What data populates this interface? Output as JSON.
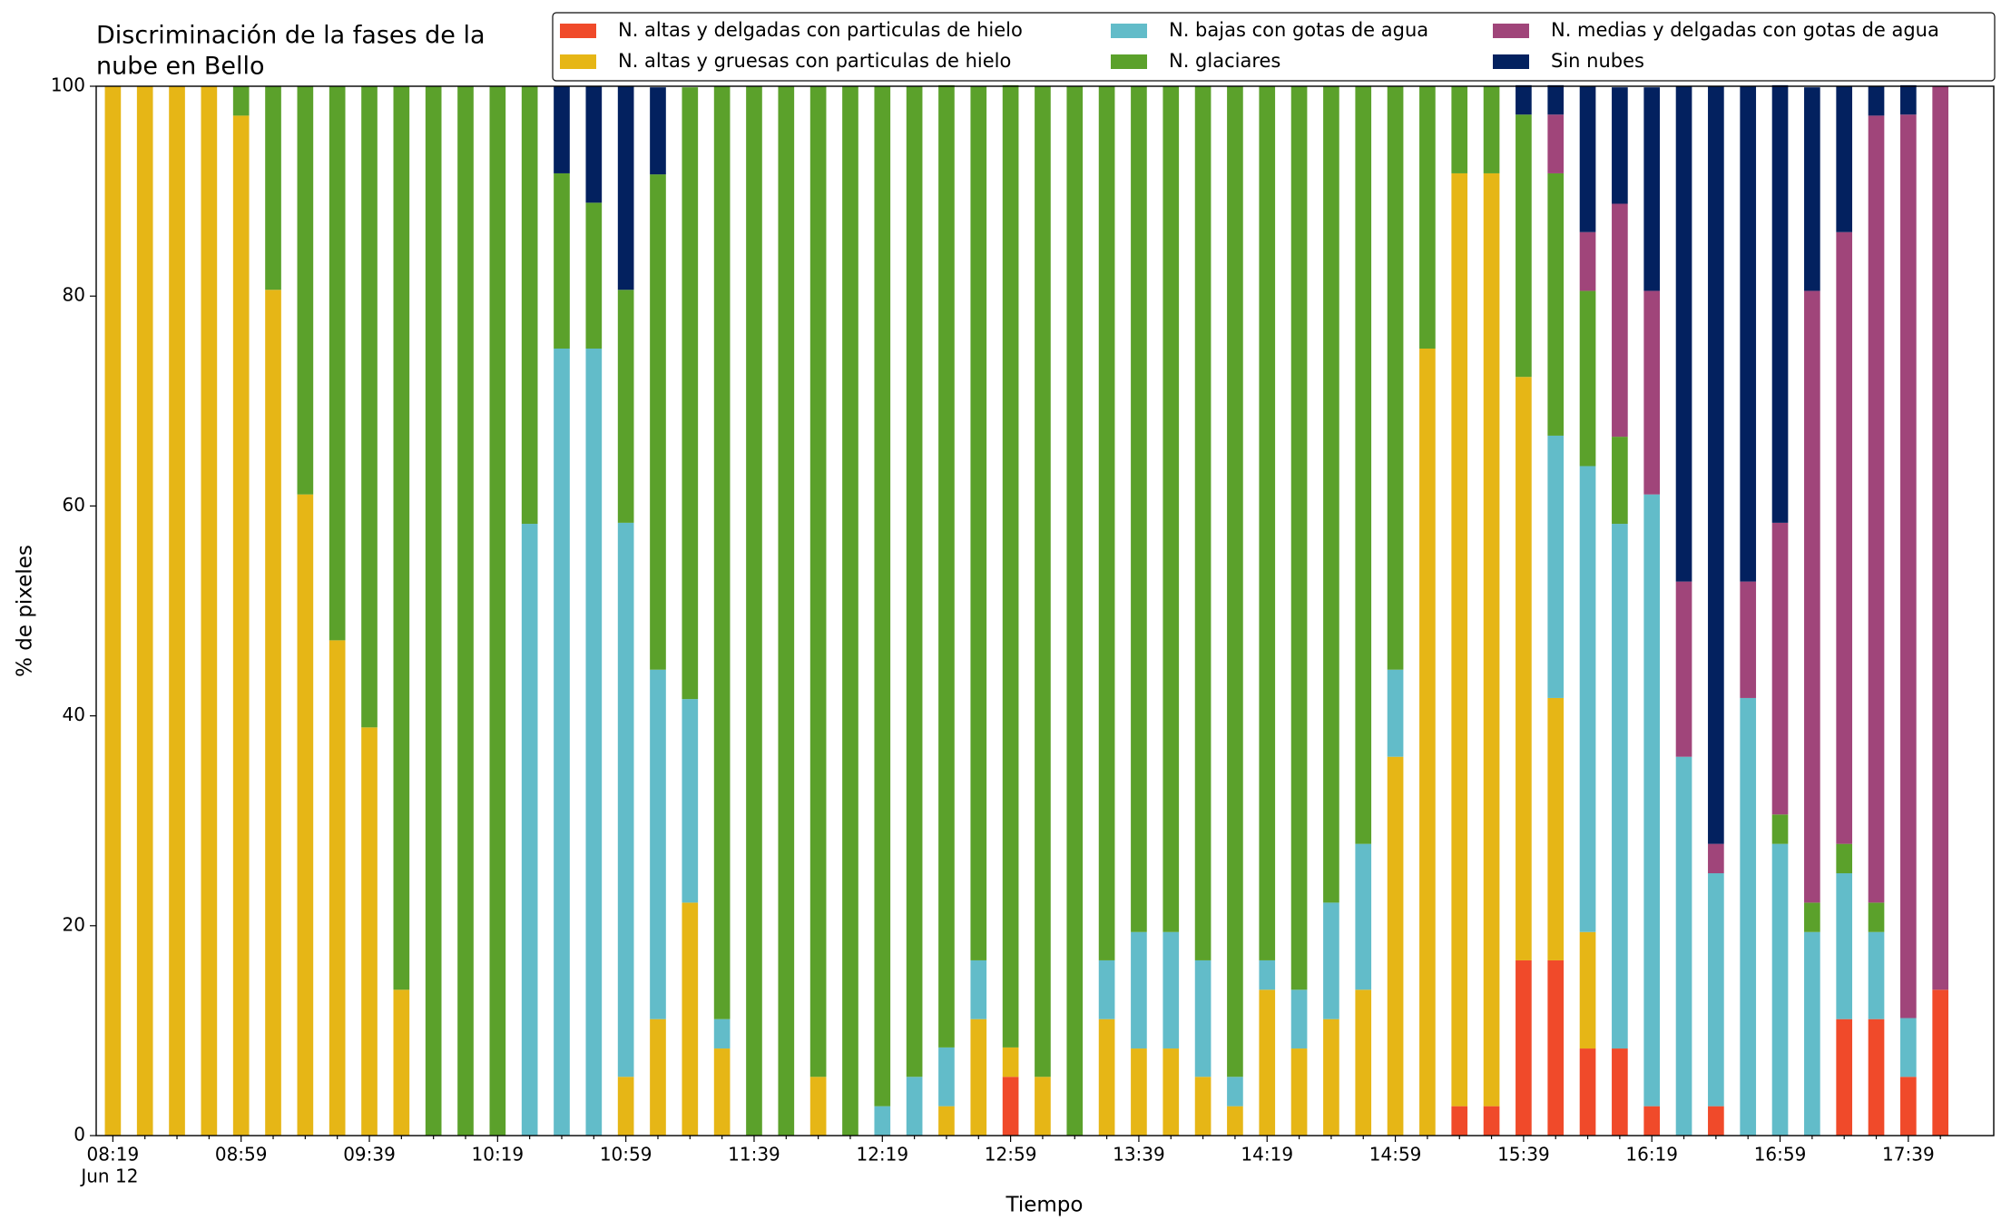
{
  "chart_data": {
    "type": "stacked_bar",
    "title": [
      "Discriminación de la fases de la",
      "nube en Bello"
    ],
    "x_label": "Tiempo",
    "y_label": "% de pixeles",
    "date_label": "Jun 12",
    "categories": [
      "08:19",
      null,
      null,
      null,
      "08:59",
      null,
      null,
      null,
      "09:39",
      null,
      null,
      null,
      "10:19",
      null,
      null,
      null,
      "10:59",
      null,
      null,
      null,
      "11:39",
      null,
      null,
      null,
      "12:19",
      null,
      null,
      null,
      "12:59",
      null,
      null,
      null,
      "13:39",
      null,
      null,
      null,
      "14:19",
      null,
      null,
      null,
      "14:59",
      null,
      null,
      null,
      "15:39",
      null,
      null,
      null,
      "16:19",
      null,
      null,
      null,
      "16:59",
      null,
      null,
      null,
      "17:39",
      null
    ],
    "ylim": [
      0,
      100
    ],
    "yticks": [
      0,
      20,
      40,
      60,
      80,
      100
    ],
    "series": [
      {
        "name": "N. altas y delgadas con particulas de hielo",
        "color": "#f04a2a",
        "values": [
          0,
          0,
          0,
          0,
          0,
          0,
          0,
          0,
          0,
          0,
          0,
          0,
          0,
          0,
          0,
          0,
          0,
          0,
          0,
          0,
          0,
          0,
          0,
          0,
          0,
          0,
          0,
          0,
          5.6,
          0,
          0,
          0,
          0,
          0,
          0,
          0,
          0,
          0,
          0,
          0,
          0,
          0,
          2.8,
          2.8,
          16.7,
          16.7,
          8.3,
          8.3,
          2.8,
          0,
          2.8,
          0,
          0,
          0,
          11.1,
          11.1,
          5.6,
          13.9
        ]
      },
      {
        "name": "N. altas y gruesas con particulas de hielo",
        "color": "#e6b616",
        "values": [
          100,
          100,
          100,
          100,
          97.2,
          80.6,
          61.1,
          47.2,
          38.9,
          13.9,
          0,
          0,
          0,
          0,
          0,
          0,
          5.6,
          11.1,
          22.2,
          8.3,
          0,
          0,
          5.6,
          0,
          0,
          0,
          2.8,
          11.1,
          2.8,
          5.6,
          0,
          11.1,
          8.3,
          8.3,
          5.6,
          2.8,
          13.9,
          8.3,
          11.1,
          13.9,
          36.1,
          75,
          88.9,
          88.9,
          55.6,
          25,
          11.1,
          0,
          0,
          0,
          0,
          0,
          0,
          0,
          0,
          0,
          0,
          0
        ]
      },
      {
        "name": "N. bajas con gotas de agua",
        "color": "#62bcc9",
        "values": [
          0,
          0,
          0,
          0,
          0,
          0,
          0,
          0,
          0,
          0,
          0,
          0,
          0,
          58.3,
          75,
          75,
          52.8,
          33.3,
          19.4,
          2.8,
          0,
          0,
          0,
          0,
          2.8,
          5.6,
          5.6,
          5.6,
          0,
          0,
          0,
          5.6,
          11.1,
          11.1,
          11.1,
          2.8,
          2.8,
          5.6,
          11.1,
          13.9,
          8.3,
          0,
          0,
          0,
          0,
          25,
          44.4,
          50,
          58.3,
          36.1,
          22.2,
          41.7,
          27.8,
          19.4,
          13.9,
          8.3,
          5.6,
          0
        ]
      },
      {
        "name": "N. glaciares",
        "color": "#5ba12b",
        "values": [
          0,
          0,
          0,
          0,
          2.8,
          19.4,
          38.9,
          52.8,
          61.1,
          86.1,
          100,
          100,
          100,
          41.7,
          16.7,
          13.9,
          22.2,
          47.2,
          58.3,
          88.9,
          100,
          100,
          94.4,
          100,
          97.2,
          94.4,
          91.7,
          83.3,
          91.7,
          94.4,
          100,
          83.3,
          80.6,
          80.6,
          83.3,
          94.4,
          83.3,
          86.1,
          77.8,
          72.2,
          55.6,
          25,
          8.3,
          8.3,
          25,
          25,
          16.7,
          8.3,
          0,
          0,
          0,
          0,
          2.8,
          2.8,
          2.8,
          2.8,
          0,
          0
        ]
      },
      {
        "name": "N. medias y delgadas con gotas de agua",
        "color": "#a0457a",
        "values": [
          0,
          0,
          0,
          0,
          0,
          0,
          0,
          0,
          0,
          0,
          0,
          0,
          0,
          0,
          0,
          0,
          0,
          0,
          0,
          0,
          0,
          0,
          0,
          0,
          0,
          0,
          0,
          0,
          0,
          0,
          0,
          0,
          0,
          0,
          0,
          0,
          0,
          0,
          0,
          0,
          0,
          0,
          0,
          0,
          0,
          5.6,
          5.6,
          22.2,
          19.4,
          16.7,
          2.8,
          11.1,
          27.8,
          58.3,
          58.3,
          75,
          86.1,
          86.1
        ]
      },
      {
        "name": "Sin nubes",
        "color": "#03215f",
        "values": [
          0,
          0,
          0,
          0,
          0,
          0,
          0,
          0,
          0,
          0,
          0,
          0,
          0,
          0,
          8.3,
          11.1,
          19.4,
          8.3,
          0,
          0,
          0,
          0,
          0,
          0,
          0,
          0,
          0,
          0,
          0,
          0,
          0,
          0,
          0,
          0,
          0,
          0,
          0,
          0,
          0,
          0,
          0,
          0,
          0,
          0,
          2.8,
          2.8,
          13.9,
          11.1,
          19.4,
          47.2,
          72.2,
          47.2,
          41.7,
          19.4,
          13.9,
          2.8,
          2.8,
          0
        ]
      }
    ]
  }
}
